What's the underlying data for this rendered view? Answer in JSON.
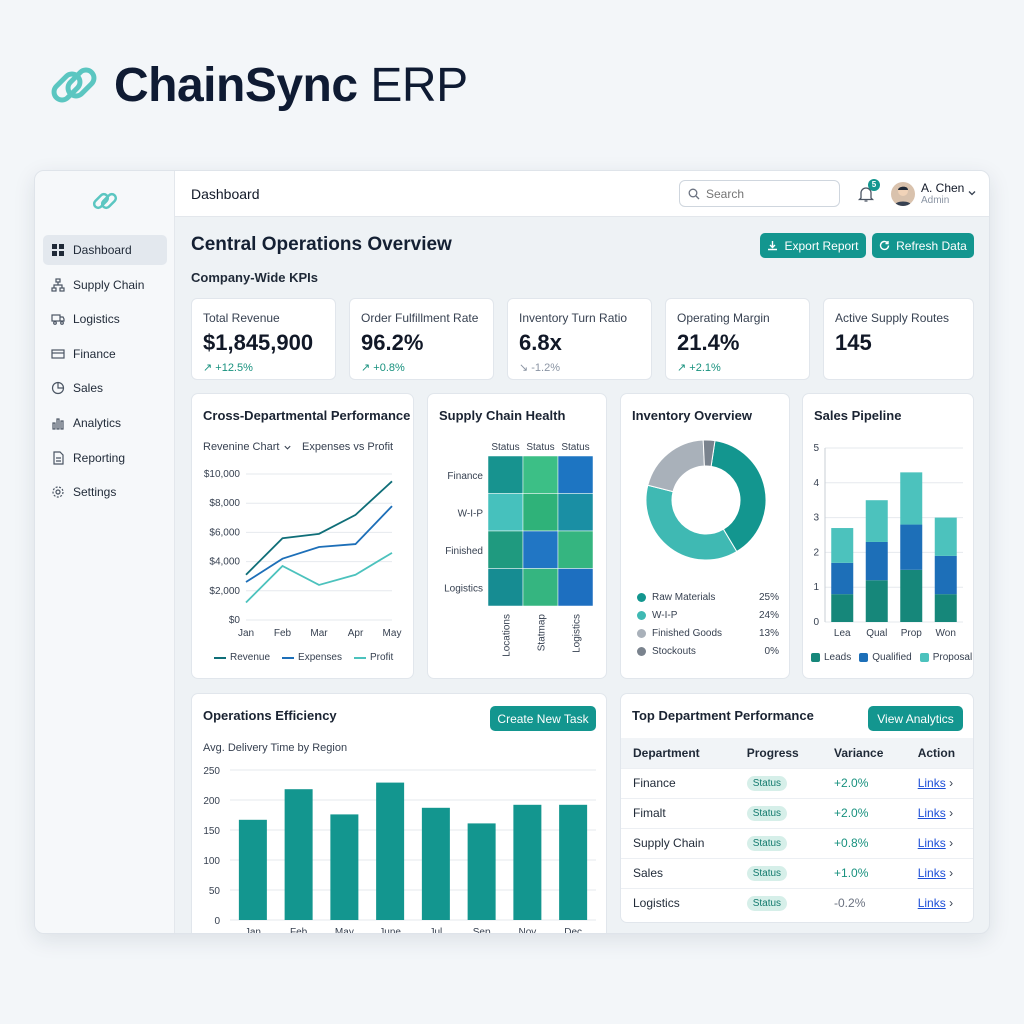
{
  "app": {
    "name_bold": "ChainSync",
    "name_light": "ERP"
  },
  "colors": {
    "teal": "#13968f",
    "dark_teal": "#0f6e78",
    "light_teal": "#4cc2bd",
    "blue": "#1d6fb8",
    "green": "#2eaf75",
    "gray": "#9aa3ad"
  },
  "sidebar": {
    "items": [
      {
        "label": "Dashboard",
        "icon": "grid-icon",
        "active": true
      },
      {
        "label": "Supply Chain",
        "icon": "network-icon"
      },
      {
        "label": "Logistics",
        "icon": "truck-icon"
      },
      {
        "label": "Finance",
        "icon": "money-icon"
      },
      {
        "label": "Sales",
        "icon": "pie-icon"
      },
      {
        "label": "Analytics",
        "icon": "bars-icon"
      },
      {
        "label": "Reporting",
        "icon": "document-icon"
      },
      {
        "label": "Settings",
        "icon": "gear-icon"
      }
    ]
  },
  "topbar": {
    "title": "Dashboard",
    "search_placeholder": "Search",
    "notifications": "5",
    "user_name": "A. Chen",
    "user_role": "Admin"
  },
  "main": {
    "title": "Central Operations Overview",
    "export_label": "Export Report",
    "refresh_label": "Refresh Data",
    "kpi_heading": "Company-Wide KPIs"
  },
  "kpis": [
    {
      "label": "Total Revenue",
      "value": "$1,845,900",
      "delta": "↗ +12.5%"
    },
    {
      "label": "Order Fulfillment Rate",
      "value": "96.2%",
      "delta": "↗ +0.8%"
    },
    {
      "label": "Inventory Turn Ratio",
      "value": "6.8x",
      "delta": "↘ -1.2%"
    },
    {
      "label": "Operating Margin",
      "value": "21.4%",
      "delta": "↗ +2.1%"
    },
    {
      "label": "Active Supply Routes",
      "value": "145",
      "delta": ""
    }
  ],
  "cards": {
    "cross": {
      "title": "Cross-Departmental Performance",
      "dropdown": "Revenine Chart",
      "subtitle": "Expenses vs Profit"
    },
    "health": {
      "title": "Supply Chain Health"
    },
    "inventory": {
      "title": "Inventory Overview"
    },
    "pipeline": {
      "title": "Sales Pipeline"
    },
    "efficiency": {
      "title": "Operations Efficiency",
      "button": "Create New Task",
      "subtitle": "Avg. Delivery Time by Region"
    },
    "top": {
      "title": "Top Department Performance",
      "button": "View Analytics"
    }
  },
  "chart_data": [
    {
      "type": "line",
      "categories": [
        "Jan",
        "Feb",
        "Mar",
        "Apr",
        "May"
      ],
      "ylim": [
        0,
        10000
      ],
      "yticks": [
        "$10,000",
        "$8,000",
        "$6,000",
        "$4,000",
        "$2,000",
        "$0"
      ],
      "series": [
        {
          "name": "Revenue",
          "color": "#0f6e78",
          "values": [
            3100,
            5600,
            5900,
            7200,
            9500
          ]
        },
        {
          "name": "Expenses",
          "color": "#1d6fb8",
          "values": [
            2600,
            4200,
            5000,
            5200,
            7800
          ]
        },
        {
          "name": "Profit",
          "color": "#4cc2bd",
          "values": [
            1200,
            3700,
            2400,
            3100,
            4600
          ]
        }
      ]
    },
    {
      "type": "heatmap",
      "columns": [
        "Status",
        "Status",
        "Status"
      ],
      "rows": [
        "Finance",
        "W-I-P",
        "Finished",
        "Logistics"
      ],
      "x_labels": [
        "Locations",
        "Statmap",
        "Logistics"
      ],
      "cells": [
        [
          "#17938f",
          "#3cbf86",
          "#1d75c2"
        ],
        [
          "#46c1bd",
          "#2fb279",
          "#1a8fa4"
        ],
        [
          "#1f9a7f",
          "#2176c4",
          "#35b580"
        ],
        [
          "#168c92",
          "#35b580",
          "#1d6fc0"
        ]
      ]
    },
    {
      "type": "pie",
      "slices": [
        {
          "label": "Raw Materials",
          "value": "25%",
          "color": "#13968f"
        },
        {
          "label": "W-I-P",
          "value": "24%",
          "color": "#3fb9b3"
        },
        {
          "label": "Finished Goods",
          "value": "13%",
          "color": "#a9b1ba"
        },
        {
          "label": "Stockouts",
          "value": "0%",
          "color": "#7a838e"
        }
      ]
    },
    {
      "type": "bar",
      "stacked": true,
      "categories": [
        "Lea",
        "Qual",
        "Prop",
        "Won"
      ],
      "ylim": [
        0,
        5
      ],
      "yticks": [
        "5",
        "4",
        "3",
        "2",
        "1",
        "0"
      ],
      "series": [
        {
          "name": "Leads",
          "color": "#16877a",
          "values": [
            0.8,
            1.2,
            1.5,
            0.8
          ]
        },
        {
          "name": "Qualified",
          "color": "#1d6fb8",
          "values": [
            0.9,
            1.1,
            1.3,
            1.1
          ]
        },
        {
          "name": "Proposal",
          "color": "#4cc2bd",
          "values": [
            1.0,
            1.2,
            1.5,
            1.1
          ]
        }
      ]
    },
    {
      "type": "bar",
      "categories": [
        "Jan",
        "Feb",
        "May",
        "June",
        "Jul",
        "Sep",
        "Nov",
        "Dec"
      ],
      "ylim": [
        0,
        250
      ],
      "yticks": [
        "250",
        "200",
        "150",
        "100",
        "50",
        "0"
      ],
      "values": [
        167,
        218,
        176,
        229,
        187,
        161,
        192,
        192
      ]
    }
  ],
  "table": {
    "headers": [
      "Department",
      "Progress",
      "Variance",
      "Action"
    ],
    "rows": [
      {
        "department": "Finance",
        "progress": "Status",
        "variance": "+2.0%",
        "action": "Links",
        "positive": true
      },
      {
        "department": "Fimalt",
        "progress": "Status",
        "variance": "+2.0%",
        "action": "Links",
        "positive": true
      },
      {
        "department": "Supply Chain",
        "progress": "Status",
        "variance": "+0.8%",
        "action": "Links",
        "positive": true
      },
      {
        "department": "Sales",
        "progress": "Status",
        "variance": "+1.0%",
        "action": "Links",
        "positive": true
      },
      {
        "department": "Logistics",
        "progress": "Status",
        "variance": "-0.2%",
        "action": "Links",
        "positive": false
      }
    ]
  }
}
